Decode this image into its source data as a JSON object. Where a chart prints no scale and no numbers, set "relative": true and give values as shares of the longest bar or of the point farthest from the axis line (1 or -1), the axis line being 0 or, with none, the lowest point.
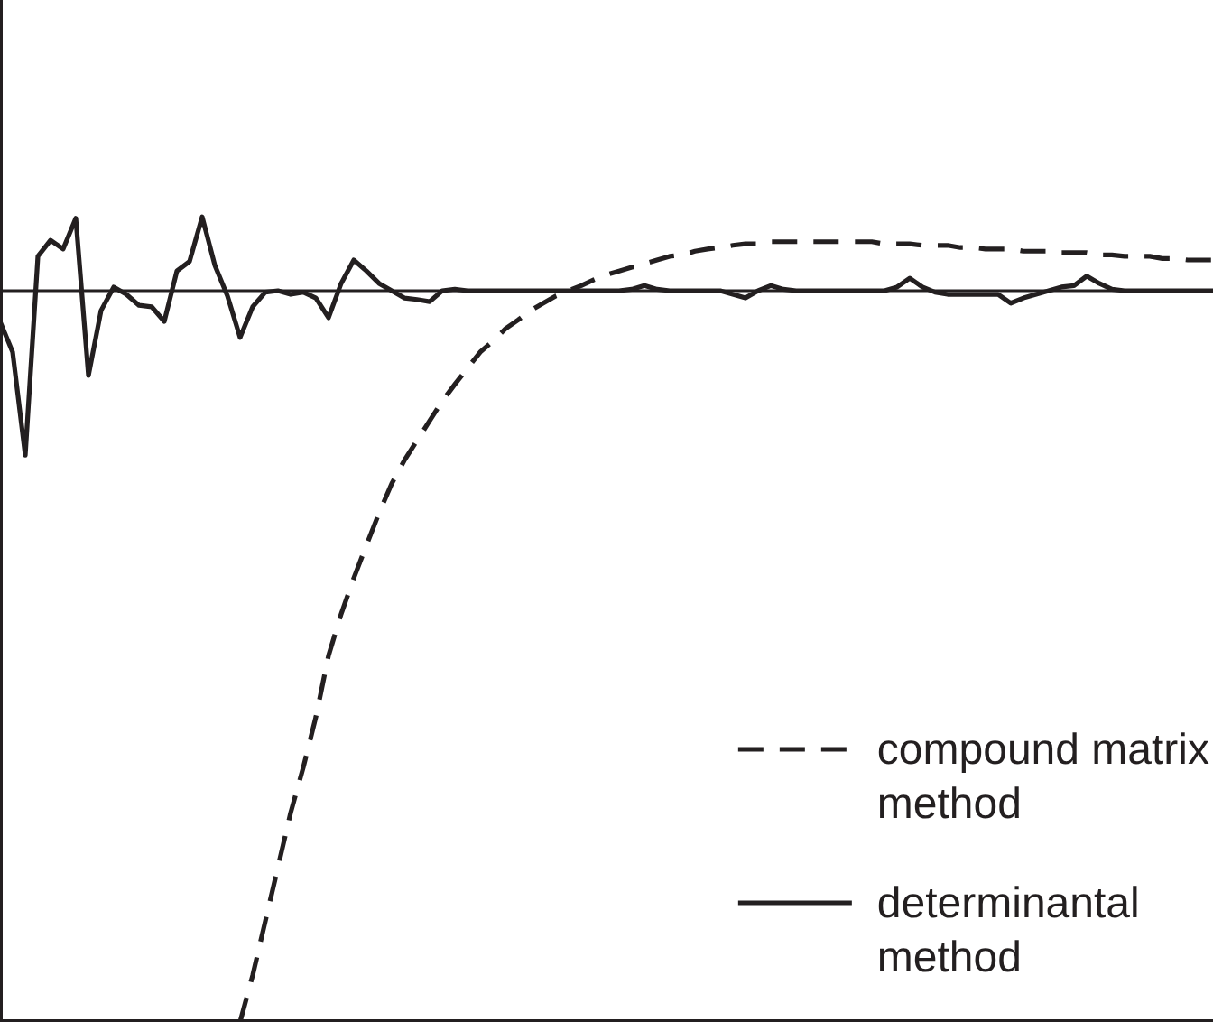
{
  "chart_data": {
    "type": "line",
    "relative": true,
    "legend": "bottom right",
    "categories": [
      null,
      null,
      null,
      null,
      null,
      null,
      null,
      null,
      null,
      null,
      null,
      null,
      null,
      null,
      null,
      null,
      null,
      null,
      null,
      null,
      null,
      null,
      null,
      null,
      null,
      null,
      null,
      null,
      null,
      null,
      null,
      null,
      null,
      null,
      null,
      null,
      null,
      null,
      null,
      null,
      null,
      null,
      null,
      null,
      null,
      null,
      null,
      null,
      null,
      null,
      null,
      null,
      null,
      null,
      null,
      null,
      null,
      null,
      null,
      null,
      null,
      null,
      null,
      null,
      null,
      null,
      null,
      null,
      null,
      null,
      null,
      null,
      null,
      null,
      null,
      null,
      null,
      null,
      null,
      null,
      null,
      null,
      null,
      null,
      null,
      null,
      null,
      null,
      null,
      null,
      null,
      null,
      null,
      null,
      null,
      null,
      null
    ],
    "series": [
      {
        "name": "compound matrix method",
        "color": "#231f20",
        "line_style": "dashed",
        "values": [
          null,
          null,
          null,
          null,
          null,
          null,
          null,
          null,
          null,
          null,
          null,
          null,
          null,
          null,
          null,
          null,
          null,
          null,
          null,
          -1,
          -0.936,
          -0.862,
          -0.788,
          -0.714,
          -0.652,
          -0.583,
          -0.499,
          -0.442,
          -0.393,
          -0.348,
          -0.304,
          -0.264,
          -0.232,
          -0.205,
          -0.178,
          -0.151,
          -0.128,
          -0.106,
          -0.084,
          -0.069,
          -0.052,
          -0.04,
          -0.027,
          -0.017,
          -0.007,
          0,
          0.007,
          0.015,
          0.022,
          0.027,
          0.032,
          0.037,
          0.042,
          0.047,
          0.049,
          0.054,
          0.057,
          0.059,
          0.062,
          0.064,
          0.064,
          0.067,
          0.067,
          0.067,
          0.067,
          0.067,
          0.067,
          0.067,
          0.067,
          0.067,
          0.064,
          0.064,
          0.064,
          0.062,
          0.062,
          0.062,
          0.059,
          0.059,
          0.057,
          0.057,
          0.057,
          0.054,
          0.054,
          0.054,
          0.052,
          0.052,
          0.052,
          0.049,
          0.049,
          0.047,
          0.047,
          0.047,
          0.044,
          0.044,
          0.042,
          0.042,
          0.042
        ]
      },
      {
        "name": "determinantal method",
        "color": "#231f20",
        "line_style": "solid",
        "values": [
          -0.042,
          -0.084,
          -0.225,
          0.047,
          0.069,
          0.057,
          0.099,
          -0.116,
          -0.027,
          0.005,
          -0.005,
          -0.02,
          -0.022,
          -0.042,
          0.027,
          0.04,
          0.101,
          0.035,
          -0.007,
          -0.064,
          -0.022,
          -0.002,
          0,
          -0.005,
          -0.002,
          -0.01,
          -0.037,
          0.01,
          0.042,
          0.027,
          0.01,
          0,
          -0.01,
          -0.012,
          -0.015,
          0,
          0.002,
          0,
          0,
          0,
          0,
          0,
          0,
          0,
          0,
          0,
          0,
          0,
          0,
          0,
          0.002,
          0.007,
          0.002,
          0,
          0,
          0,
          0,
          0,
          -0.005,
          -0.01,
          0,
          0.007,
          0.002,
          0,
          0,
          0,
          0,
          0,
          0,
          0,
          0,
          0.005,
          0.017,
          0.005,
          -0.002,
          -0.005,
          -0.005,
          -0.005,
          -0.005,
          -0.005,
          -0.017,
          -0.01,
          -0.005,
          0,
          0.005,
          0.007,
          0.02,
          0.01,
          0.002,
          0,
          0,
          0,
          0,
          0,
          0,
          0,
          0
        ]
      }
    ]
  }
}
